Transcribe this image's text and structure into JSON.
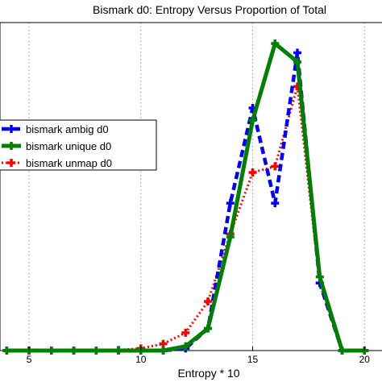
{
  "chart_data": {
    "type": "line",
    "title": "Bismark d0: Entropy Versus Proportion of Total",
    "xlabel": "Entropy * 10",
    "ylabel": "",
    "xlim": [
      3.7,
      21
    ],
    "ylim": [
      0,
      0.1
    ],
    "x_ticks": [
      5,
      10,
      15,
      20
    ],
    "x_tick_labels": [
      "5",
      "10",
      "15",
      "20"
    ],
    "grid": true,
    "legend_position": "left",
    "series": [
      {
        "name": "bismark ambig d0",
        "color": "#0000ff",
        "style": "dashed",
        "marker": "plus",
        "x": [
          4,
          5,
          6,
          7,
          8,
          9,
          10,
          11,
          12,
          13,
          14,
          15,
          16,
          17,
          18,
          19,
          20
        ],
        "y": [
          0,
          0,
          0,
          0,
          0,
          0,
          0,
          0,
          0.0007,
          0.0072,
          0.048,
          0.079,
          0.048,
          0.097,
          0.022,
          0,
          0
        ]
      },
      {
        "name": "bismark unique d0",
        "color": "#008000",
        "style": "solid",
        "marker": "plus",
        "x": [
          4,
          5,
          6,
          7,
          8,
          9,
          10,
          11,
          12,
          13,
          14,
          15,
          16,
          17,
          18,
          19,
          20
        ],
        "y": [
          0,
          0,
          0,
          0,
          0,
          0,
          0,
          0,
          0.0014,
          0.0072,
          0.037,
          0.075,
          0.1,
          0.094,
          0.024,
          0,
          0
        ]
      },
      {
        "name": "bismark unmap d0",
        "color": "#ff0000",
        "style": "dotted",
        "marker": "plus",
        "x": [
          4,
          5,
          6,
          7,
          8,
          9,
          10,
          11,
          12,
          13,
          14,
          15,
          16,
          17,
          18,
          19,
          20
        ],
        "y": [
          0,
          0,
          0,
          0,
          0,
          0.0002,
          0.0007,
          0.0022,
          0.0058,
          0.016,
          0.038,
          0.058,
          0.06,
          0.086,
          0.022,
          0,
          0
        ]
      }
    ]
  }
}
